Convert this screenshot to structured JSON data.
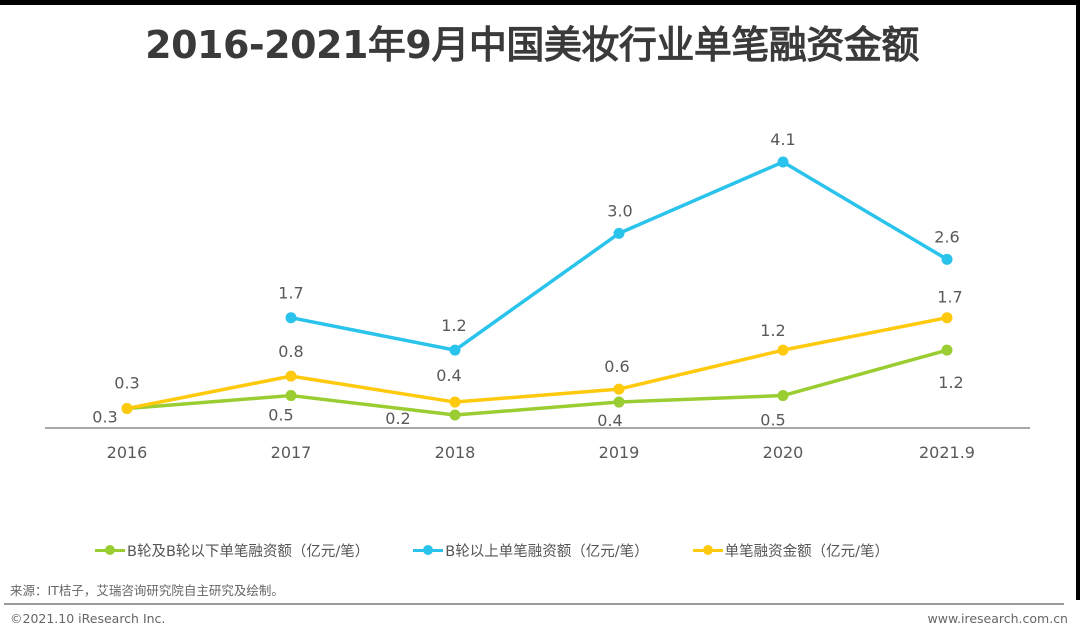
{
  "title": "2016-2021年9月中国美妆行业单笔融资金额",
  "chart_data": {
    "type": "line",
    "title": "2016-2021年9月中国美妆行业单笔融资金额",
    "xlabel": "",
    "ylabel": "",
    "categories": [
      "2016",
      "2017",
      "2018",
      "2019",
      "2020",
      "2021.9"
    ],
    "ylim": [
      0,
      4.1
    ],
    "grid": false,
    "legend_position": "bottom",
    "series": [
      {
        "name": "B轮及B轮以下单笔融资额（亿元/笔）",
        "color": "#9ACD32",
        "values": [
          0.3,
          0.5,
          0.2,
          0.4,
          0.5,
          1.2
        ],
        "labels": [
          "0.3",
          "0.5",
          "0.2",
          "0.4",
          "0.5",
          "1.2"
        ],
        "label_placement": "below"
      },
      {
        "name": "B轮以上单笔融资额（亿元/笔）",
        "color": "#29C3EC",
        "values": [
          null,
          1.7,
          1.2,
          3.0,
          4.1,
          2.6
        ],
        "labels": [
          null,
          "1.7",
          "1.2",
          "3.0",
          "4.1",
          "2.6"
        ],
        "label_placement": "above"
      },
      {
        "name": "单笔融资金额（亿元/笔）",
        "color": "#FFC90E",
        "values": [
          0.3,
          0.8,
          0.4,
          0.6,
          1.2,
          1.7
        ],
        "labels": [
          "0.3",
          "0.8",
          "0.4",
          "0.6",
          "1.2",
          "1.7"
        ],
        "label_placement": "above"
      }
    ],
    "axis_color": "#8c8c8c",
    "label_color": "#595959"
  },
  "legend": [
    {
      "label": "B轮及B轮以下单笔融资额（亿元/笔）",
      "color": "#9ACD32"
    },
    {
      "label": "B轮以上单笔融资额（亿元/笔）",
      "color": "#29C3EC"
    },
    {
      "label": "单笔融资金额（亿元/笔）",
      "color": "#FFC90E"
    }
  ],
  "footer": {
    "source": "来源：IT桔子，艾瑞咨询研究院自主研究及绘制。",
    "copyright": "©2021.10 iResearch Inc.",
    "website": "www.iresearch.com.cn"
  }
}
